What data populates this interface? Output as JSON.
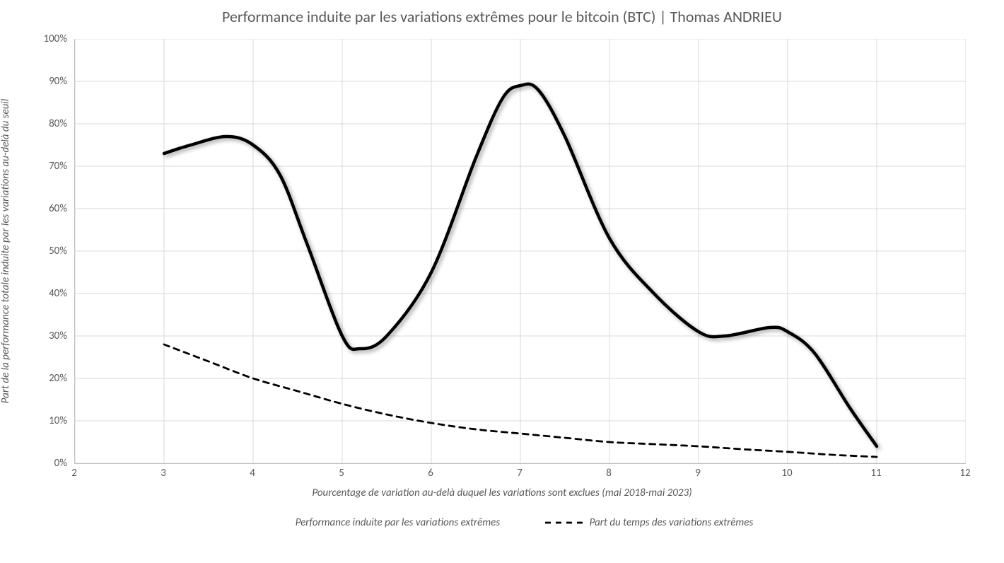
{
  "chart": {
    "type": "line",
    "title": "Performance induite par les variations extrêmes pour le bitcoin (BTC) | Thomas ANDRIEU",
    "title_fontsize": 22,
    "title_color": "#595959",
    "background_color": "#ffffff",
    "plot_border_color": "#bfbfbf",
    "grid_color": "#d9d9d9",
    "x_axis": {
      "label": "Pourcentage de variation au-delà duquel les variations sont exclues (mai 2018-mai 2023)",
      "label_fontsize": 15,
      "label_style": "italic",
      "min": 2,
      "max": 12,
      "tick_step": 1,
      "ticks": [
        2,
        3,
        4,
        5,
        6,
        7,
        8,
        9,
        10,
        11,
        12
      ]
    },
    "y_axis": {
      "label": "Part de la performance totale induite par les variations  au-delà du seuil",
      "label_fontsize": 15,
      "label_style": "italic",
      "min": 0,
      "max": 100,
      "tick_step": 10,
      "ticks": [
        0,
        10,
        20,
        30,
        40,
        50,
        60,
        70,
        80,
        90,
        100
      ],
      "tick_format": "{v}%"
    },
    "series": [
      {
        "name": "Performance induite par les variations extrêmes",
        "color": "#000000",
        "line_width": 4.5,
        "dash": "none",
        "shadow": true,
        "shadow_color": "rgba(0,0,0,0.35)",
        "shadow_blur": 5,
        "shadow_dx": 3,
        "shadow_dy": 3,
        "smooth": true,
        "points": [
          {
            "x": 3,
            "y": 73
          },
          {
            "x": 3.3,
            "y": 75
          },
          {
            "x": 3.7,
            "y": 77
          },
          {
            "x": 4,
            "y": 75
          },
          {
            "x": 4.3,
            "y": 68
          },
          {
            "x": 4.6,
            "y": 52
          },
          {
            "x": 5,
            "y": 30
          },
          {
            "x": 5.2,
            "y": 27
          },
          {
            "x": 5.5,
            "y": 30
          },
          {
            "x": 6,
            "y": 45
          },
          {
            "x": 6.5,
            "y": 72
          },
          {
            "x": 6.8,
            "y": 86
          },
          {
            "x": 7,
            "y": 89
          },
          {
            "x": 7.2,
            "y": 88
          },
          {
            "x": 7.5,
            "y": 77
          },
          {
            "x": 8,
            "y": 53
          },
          {
            "x": 8.5,
            "y": 40
          },
          {
            "x": 9,
            "y": 31
          },
          {
            "x": 9.3,
            "y": 30
          },
          {
            "x": 9.8,
            "y": 32
          },
          {
            "x": 10,
            "y": 31
          },
          {
            "x": 10.3,
            "y": 26
          },
          {
            "x": 10.7,
            "y": 13
          },
          {
            "x": 11,
            "y": 4
          }
        ]
      },
      {
        "name": "Part du temps des variations extrêmes",
        "color": "#000000",
        "line_width": 2.8,
        "dash": "8,7",
        "shadow": false,
        "smooth": true,
        "points": [
          {
            "x": 3,
            "y": 28
          },
          {
            "x": 3.5,
            "y": 24
          },
          {
            "x": 4,
            "y": 20
          },
          {
            "x": 4.5,
            "y": 17
          },
          {
            "x": 5,
            "y": 14
          },
          {
            "x": 5.5,
            "y": 11.5
          },
          {
            "x": 6,
            "y": 9.5
          },
          {
            "x": 6.5,
            "y": 8
          },
          {
            "x": 7,
            "y": 7
          },
          {
            "x": 7.5,
            "y": 6
          },
          {
            "x": 8,
            "y": 5
          },
          {
            "x": 8.5,
            "y": 4.5
          },
          {
            "x": 9,
            "y": 4
          },
          {
            "x": 9.5,
            "y": 3.3
          },
          {
            "x": 10,
            "y": 2.7
          },
          {
            "x": 10.5,
            "y": 2
          },
          {
            "x": 11,
            "y": 1.5
          }
        ]
      }
    ],
    "legend": {
      "position": "bottom",
      "fontsize": 15,
      "font_style": "italic"
    }
  }
}
